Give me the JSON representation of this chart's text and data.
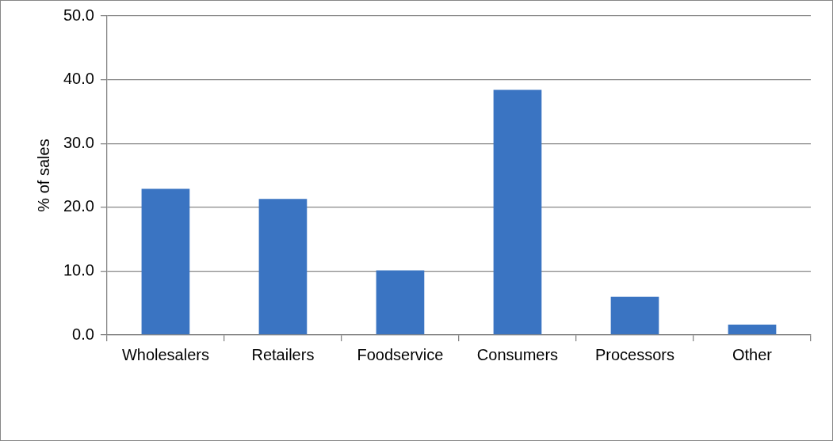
{
  "chart_data": {
    "type": "bar",
    "ylabel": "% of sales",
    "categories": [
      "Wholesalers",
      "Retailers",
      "Foodservice",
      "Consumers",
      "Processors",
      "Other"
    ],
    "values": [
      22.9,
      21.3,
      10.1,
      38.4,
      6.0,
      1.6
    ],
    "color": "#3a74c2",
    "ylim": [
      0,
      50
    ],
    "yticks": [
      {
        "value": 0,
        "label": "0.0"
      },
      {
        "value": 10,
        "label": "10.0"
      },
      {
        "value": 20,
        "label": "20.0"
      },
      {
        "value": 30,
        "label": "30.0"
      },
      {
        "value": 40,
        "label": "40.0"
      },
      {
        "value": 50,
        "label": "50.0"
      }
    ],
    "grid": "y",
    "legend": false
  }
}
